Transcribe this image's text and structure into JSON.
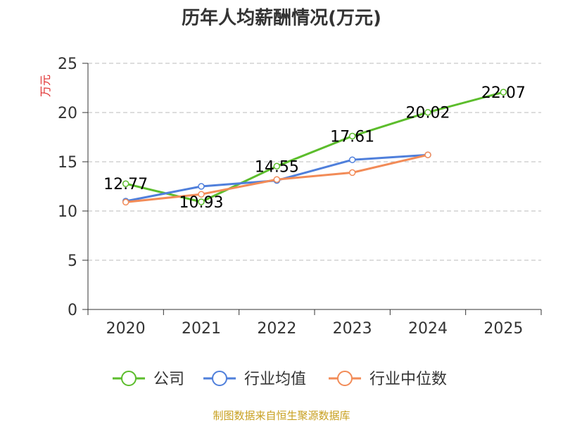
{
  "chart_data": {
    "type": "line",
    "title": "历年人均薪酬情况(万元)",
    "ylabel": "万元",
    "categories": [
      "2020",
      "2021",
      "2022",
      "2023",
      "2024",
      "2025"
    ],
    "ylim": [
      0,
      25
    ],
    "yticks": [
      0,
      5,
      10,
      15,
      20,
      25
    ],
    "grid": true,
    "legend_position": "bottom",
    "series": [
      {
        "name": "公司",
        "color": "#5cbd2c",
        "values": [
          12.77,
          10.93,
          14.55,
          17.61,
          20.02,
          22.07
        ],
        "labels": true
      },
      {
        "name": "行业均值",
        "color": "#4f7fdb",
        "values": [
          11.0,
          12.5,
          13.1,
          15.2,
          15.7,
          null
        ],
        "labels": false
      },
      {
        "name": "行业中位数",
        "color": "#f28b57",
        "values": [
          10.9,
          11.7,
          13.2,
          13.9,
          15.7,
          null
        ],
        "labels": false
      }
    ]
  },
  "colors": {
    "ylabel": "#e03030",
    "source": "#c8a020",
    "grid": "#bbbbbb",
    "axis": "#333333"
  },
  "source_text": "制图数据来自恒生聚源数据库"
}
